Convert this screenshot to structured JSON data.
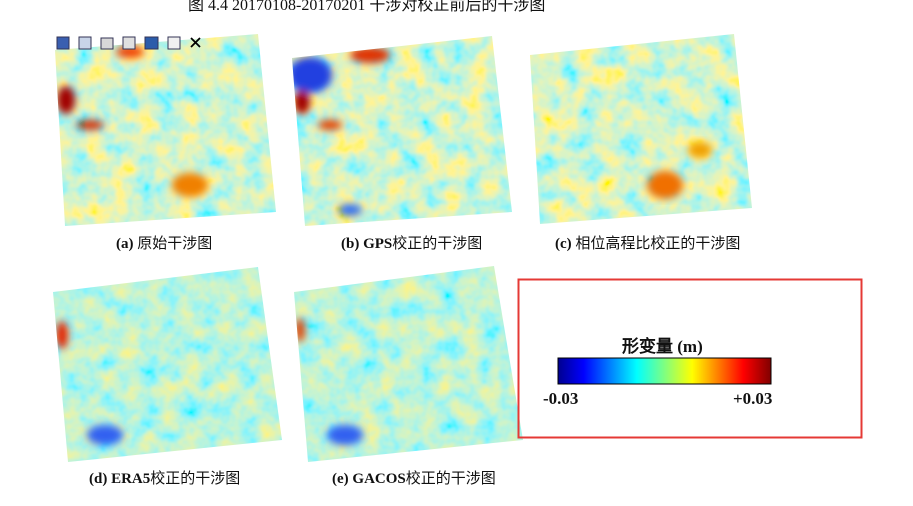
{
  "header": {
    "title": "图 4.4  20170108-20170201 干涉对校正前后的干涉图"
  },
  "figures": [
    {
      "label": "(a)",
      "text": "原始干涉图"
    },
    {
      "label": "(b) GPS",
      "text": "校正的干涉图"
    },
    {
      "label": "(c)",
      "text": "相位高程比校正的干涉图"
    },
    {
      "label": "(d) ERA5",
      "text": "校正的干涉图"
    },
    {
      "label": "(e) GACOS",
      "text": "校正的干涉图"
    }
  ],
  "legend": {
    "title": "形变量 (m)",
    "min_label": "-0.03",
    "max_label": "+0.03"
  }
}
